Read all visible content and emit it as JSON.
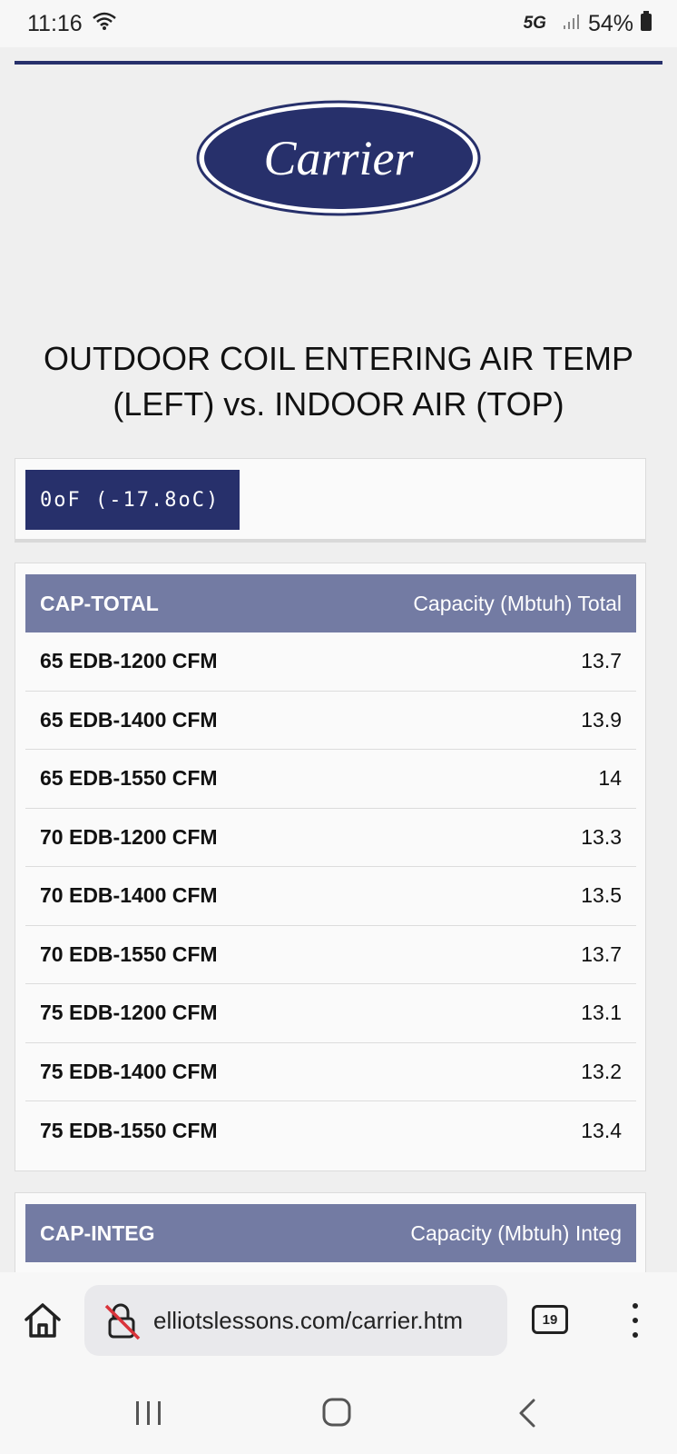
{
  "status_bar": {
    "time": "11:16",
    "network": "5G",
    "battery": "54%"
  },
  "logo": {
    "text": "Carrier",
    "color": "#27306b"
  },
  "page": {
    "title": "OUTDOOR COIL ENTERING AIR TEMP (LEFT) vs. INDOOR AIR (TOP)",
    "temp_badge": "0oF (-17.8oC)"
  },
  "table_total": {
    "header_left": "CAP-TOTAL",
    "header_right": "Capacity (Mbtuh) Total",
    "rows": [
      {
        "label": "65 EDB-1200 CFM",
        "value": "13.7"
      },
      {
        "label": "65 EDB-1400 CFM",
        "value": "13.9"
      },
      {
        "label": "65 EDB-1550 CFM",
        "value": "14"
      },
      {
        "label": "70 EDB-1200 CFM",
        "value": "13.3"
      },
      {
        "label": "70 EDB-1400 CFM",
        "value": "13.5"
      },
      {
        "label": "70 EDB-1550 CFM",
        "value": "13.7"
      },
      {
        "label": "75 EDB-1200 CFM",
        "value": "13.1"
      },
      {
        "label": "75 EDB-1400 CFM",
        "value": "13.2"
      },
      {
        "label": "75 EDB-1550 CFM",
        "value": "13.4"
      }
    ]
  },
  "table_integ": {
    "header_left": "CAP-INTEG",
    "header_right": "Capacity (Mbtuh) Integ"
  },
  "browser": {
    "url": "elliotslessons.com/carrier.htm",
    "tab_count": "19"
  },
  "colors": {
    "brand_navy": "#27306b",
    "table_header": "#737ba3"
  }
}
